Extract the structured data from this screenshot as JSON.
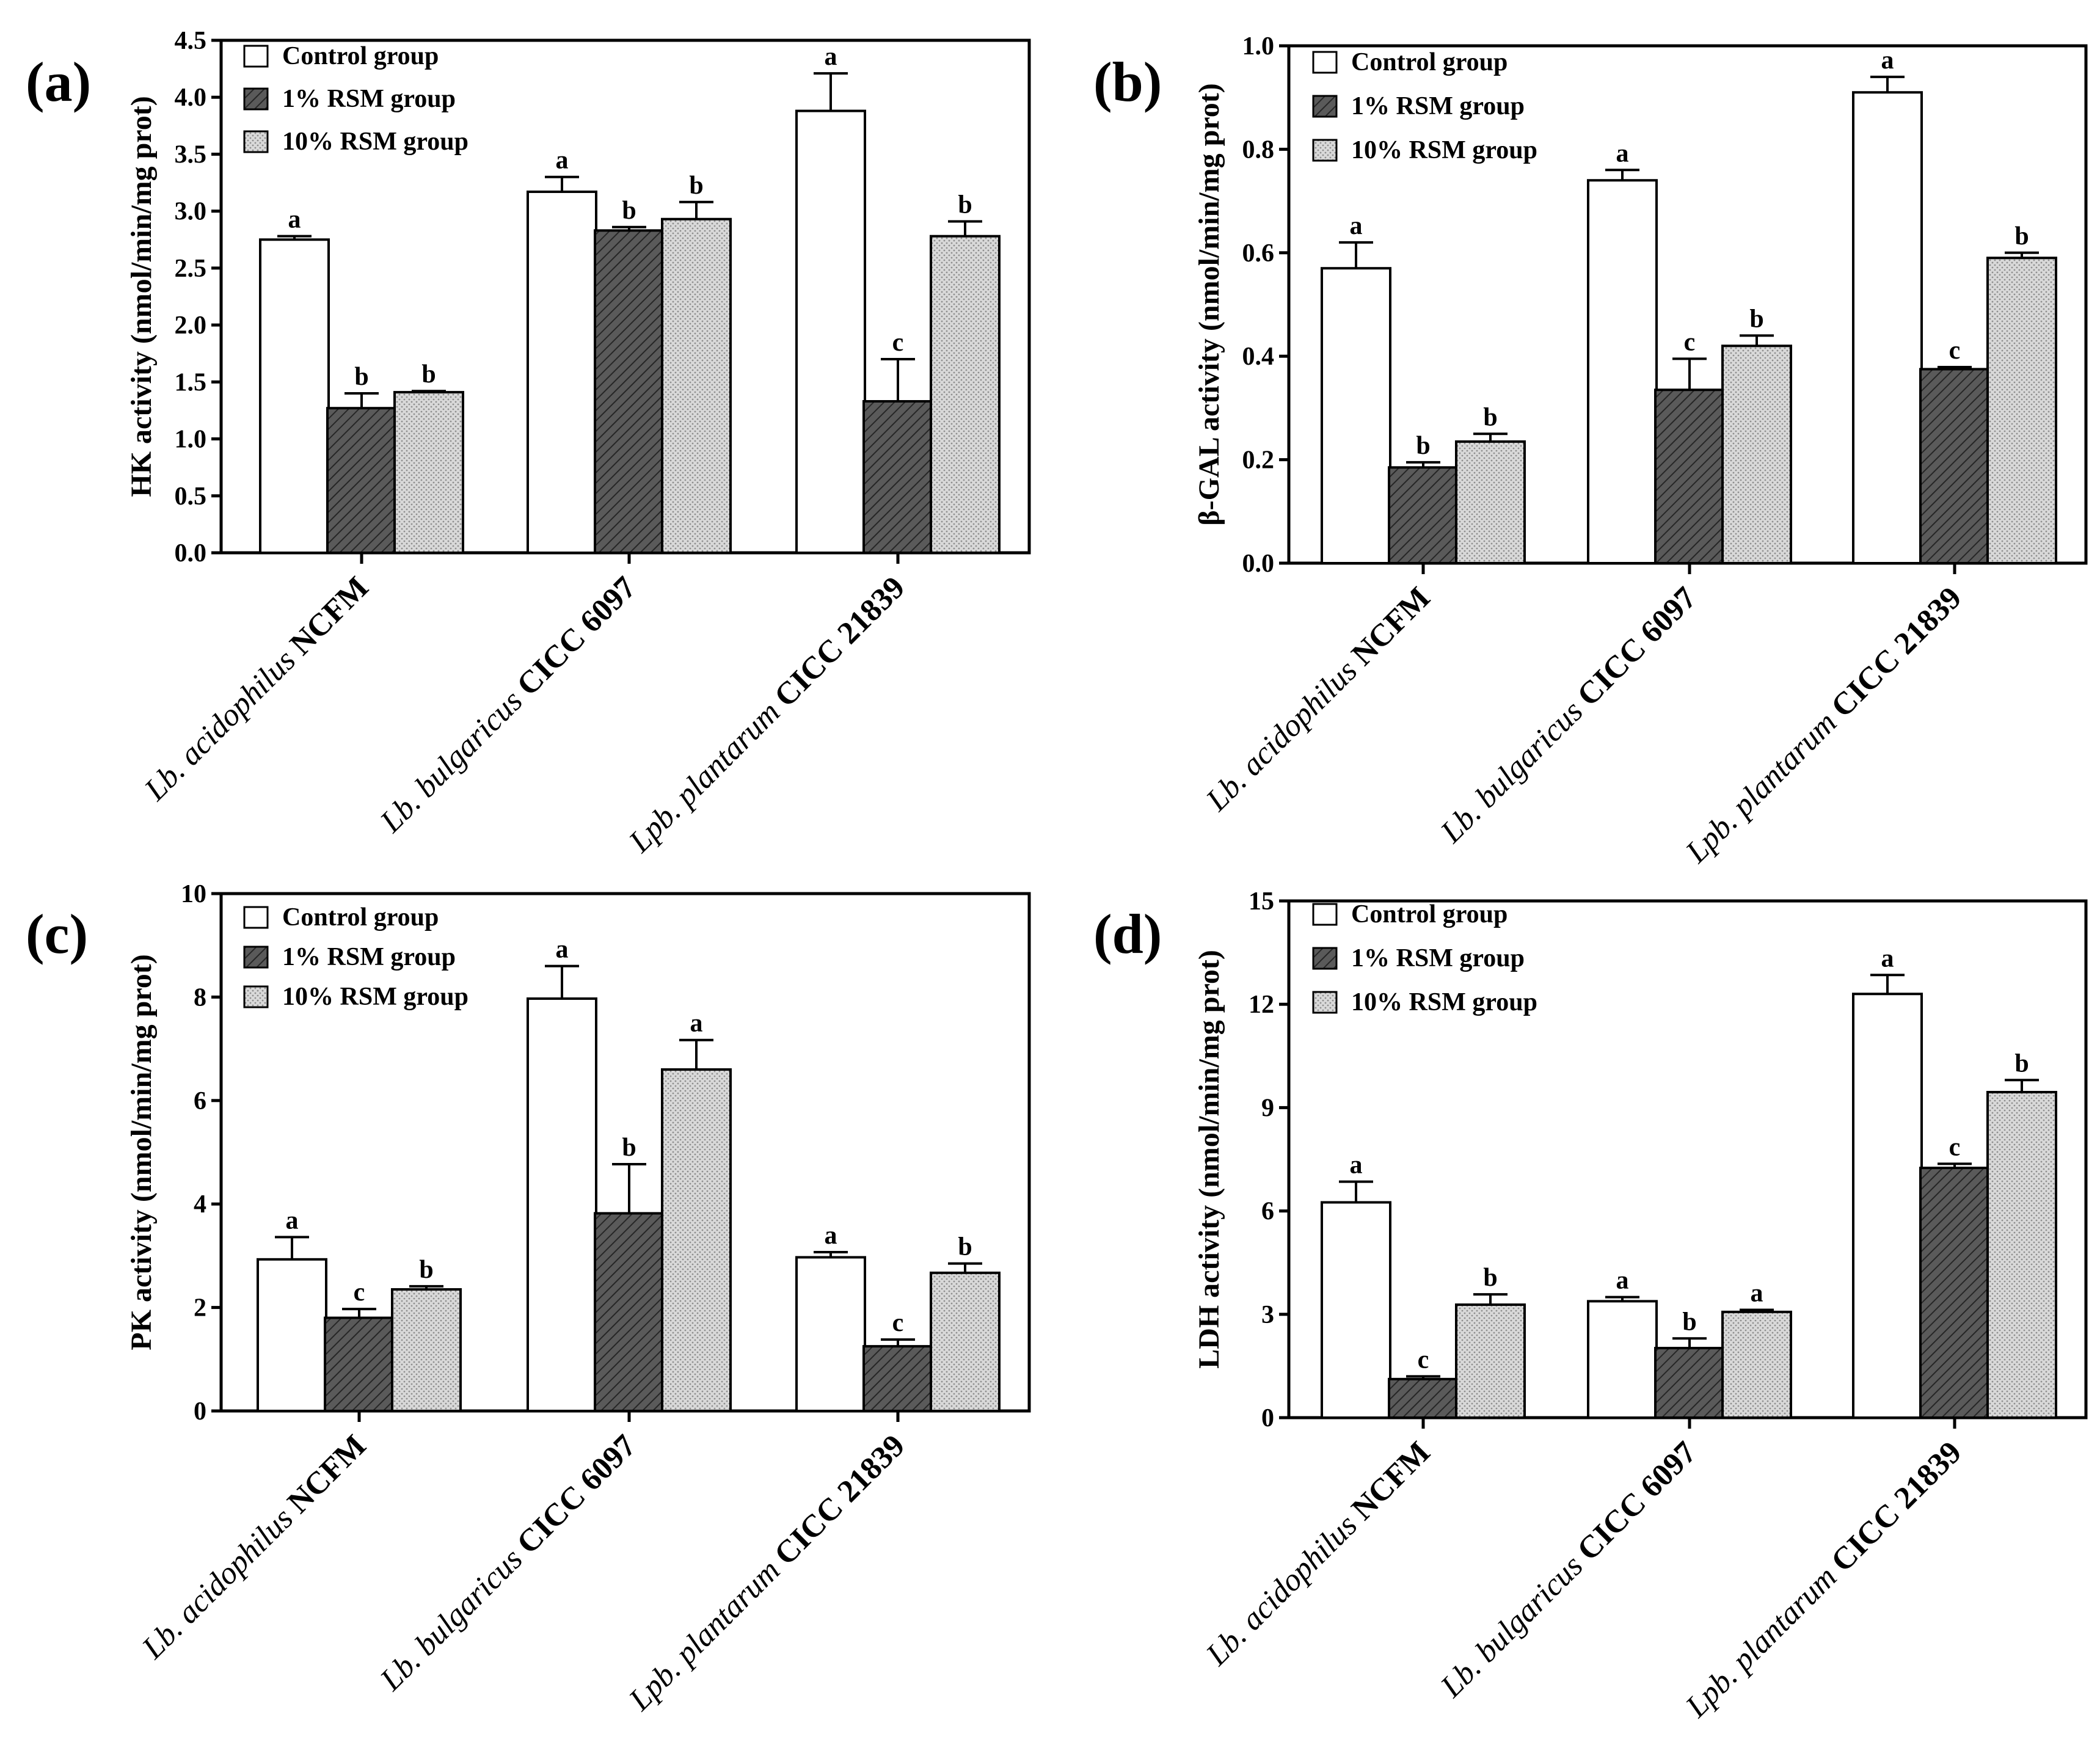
{
  "colors": {
    "control": "#ffffff",
    "rsm1": "#5a5a5a",
    "rsm10": "#d4d4d4",
    "axis": "#000000"
  },
  "legend": [
    "Control group",
    "1% RSM group",
    "10% RSM group"
  ],
  "strains": [
    {
      "genus": "Lb. ",
      "species": "acidophilus",
      "strain": " NCFM"
    },
    {
      "genus": "Lb. ",
      "species": "bulgaricus",
      "strain": " CICC 6097"
    },
    {
      "genus": "Lpb. ",
      "species": "plantarum",
      "strain": " CICC 21839"
    }
  ],
  "chart_data": [
    {
      "type": "bar",
      "panel": "(a)",
      "ylabel": "HK activity (nmol/min/mg prot)",
      "ylim": [
        0,
        4.5
      ],
      "yticks": [
        "0.0",
        "0.5",
        "1.0",
        "1.5",
        "2.0",
        "2.5",
        "3.0",
        "3.5",
        "4.0",
        "4.5"
      ],
      "categories": [
        "Lb. acidophilus NCFM",
        "Lb. bulgaricus CICC 6097",
        "Lpb. plantarum CICC 21839"
      ],
      "series": [
        {
          "name": "Control group",
          "values": [
            2.75,
            3.17,
            3.88
          ],
          "errors": [
            0.03,
            0.13,
            0.33
          ],
          "letters": [
            "a",
            "a",
            "a"
          ]
        },
        {
          "name": "1% RSM group",
          "values": [
            1.27,
            2.83,
            1.33
          ],
          "errors": [
            0.13,
            0.03,
            0.37
          ],
          "letters": [
            "b",
            "b",
            "c"
          ]
        },
        {
          "name": "10% RSM group",
          "values": [
            1.41,
            2.93,
            2.78
          ],
          "errors": [
            0.01,
            0.15,
            0.13
          ],
          "letters": [
            "b",
            "b",
            "b"
          ]
        }
      ]
    },
    {
      "type": "bar",
      "panel": "(b)",
      "ylabel": "β-GAL activity (nmol/min/mg prot)",
      "ylim": [
        0,
        1.0
      ],
      "yticks": [
        "0.0",
        "0.2",
        "0.4",
        "0.6",
        "0.8",
        "1.0"
      ],
      "categories": [
        "Lb. acidophilus NCFM",
        "Lb. bulgaricus CICC 6097",
        "Lpb. plantarum CICC 21839"
      ],
      "series": [
        {
          "name": "Control group",
          "values": [
            0.57,
            0.74,
            0.91
          ],
          "errors": [
            0.05,
            0.02,
            0.03
          ],
          "letters": [
            "a",
            "a",
            "a"
          ]
        },
        {
          "name": "1% RSM group",
          "values": [
            0.185,
            0.335,
            0.375
          ],
          "errors": [
            0.01,
            0.06,
            0.004
          ],
          "letters": [
            "b",
            "c",
            "c"
          ]
        },
        {
          "name": "10% RSM group",
          "values": [
            0.235,
            0.42,
            0.59
          ],
          "errors": [
            0.015,
            0.02,
            0.01
          ],
          "letters": [
            "b",
            "b",
            "b"
          ]
        }
      ]
    },
    {
      "type": "bar",
      "panel": "(c)",
      "ylabel": "PK activity (nmol/min/mg prot)",
      "ylim": [
        0,
        10
      ],
      "yticks": [
        "0",
        "2",
        "4",
        "6",
        "8",
        "10"
      ],
      "categories": [
        "Lb. acidophilus NCFM",
        "Lb. bulgaricus CICC 6097",
        "Lpb. plantarum CICC 21839"
      ],
      "series": [
        {
          "name": "Control group",
          "values": [
            2.93,
            7.97,
            2.97
          ],
          "errors": [
            0.43,
            0.63,
            0.1
          ],
          "letters": [
            "a",
            "a",
            "a"
          ]
        },
        {
          "name": "1% RSM group",
          "values": [
            1.8,
            3.82,
            1.25
          ],
          "errors": [
            0.17,
            0.95,
            0.13
          ],
          "letters": [
            "c",
            "b",
            "c"
          ]
        },
        {
          "name": "10% RSM group",
          "values": [
            2.35,
            6.6,
            2.67
          ],
          "errors": [
            0.06,
            0.57,
            0.18
          ],
          "letters": [
            "b",
            "a",
            "b"
          ]
        }
      ]
    },
    {
      "type": "bar",
      "panel": "(d)",
      "ylabel": "LDH activity (nmol/min/mg prot)",
      "ylim": [
        0,
        15
      ],
      "yticks": [
        "0",
        "3",
        "6",
        "9",
        "12",
        "15"
      ],
      "categories": [
        "Lb. acidophilus NCFM",
        "Lb. bulgaricus CICC 6097",
        "Lpb. plantarum CICC 21839"
      ],
      "series": [
        {
          "name": "Control group",
          "values": [
            6.25,
            3.38,
            12.3
          ],
          "errors": [
            0.6,
            0.12,
            0.55
          ],
          "letters": [
            "a",
            "a",
            "a"
          ]
        },
        {
          "name": "1% RSM group",
          "values": [
            1.12,
            2.02,
            7.25
          ],
          "errors": [
            0.08,
            0.28,
            0.12
          ],
          "letters": [
            "c",
            "b",
            "c"
          ]
        },
        {
          "name": "10% RSM group",
          "values": [
            3.28,
            3.07,
            9.45
          ],
          "errors": [
            0.3,
            0.06,
            0.35
          ],
          "letters": [
            "b",
            "a",
            "b"
          ]
        }
      ]
    }
  ]
}
